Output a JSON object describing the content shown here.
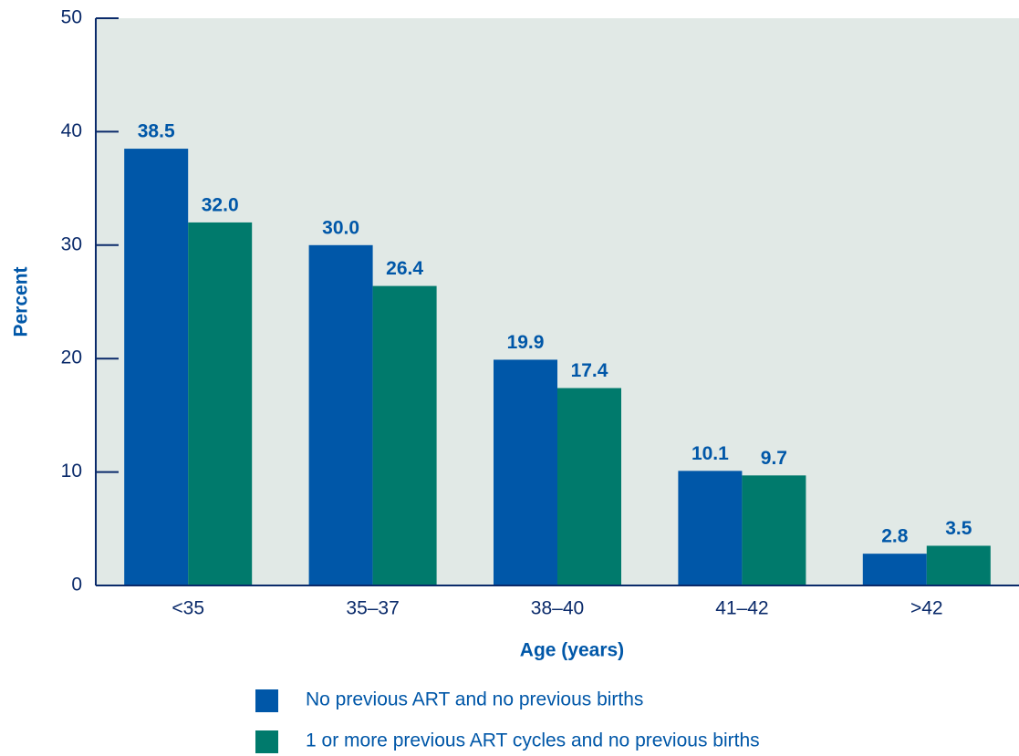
{
  "chart_data": {
    "type": "bar",
    "x_label": "Age (years)",
    "y_label": "Percent",
    "categories": [
      "<35",
      "35–37",
      "38–40",
      "41–42",
      ">42"
    ],
    "series": [
      {
        "name": "No previous ART and no previous births",
        "color": "#0057a8",
        "values": [
          38.5,
          30,
          19.9,
          10.1,
          2.8
        ],
        "value_labels": [
          "38.5",
          "30.0",
          "19.9",
          "10.1",
          "2.8"
        ]
      },
      {
        "name": "1 or more previous ART cycles and no previous births",
        "color": "#007a6c",
        "values": [
          32,
          26.4,
          17.4,
          9.7,
          3.5
        ],
        "value_labels": [
          "32.0",
          "26.4",
          "17.4",
          "9.7",
          "3.5"
        ]
      }
    ],
    "ylim": [
      0,
      50
    ],
    "yticks": [
      0,
      10,
      20,
      30,
      40,
      50
    ],
    "grid": false
  }
}
